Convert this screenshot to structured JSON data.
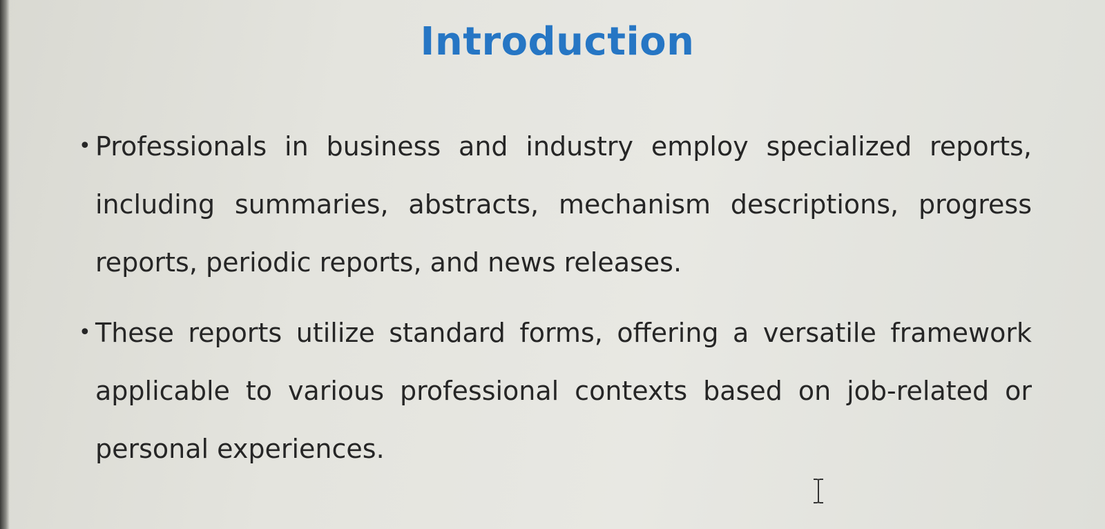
{
  "slide": {
    "title": "Introduction",
    "bullets": [
      {
        "marker": "•",
        "text": "Professionals in business and industry employ specialized reports, including summaries, abstracts, mechanism descriptions, progress reports, periodic reports, and news releases."
      },
      {
        "marker": "•",
        "text": "These reports utilize standard forms, offering a versatile framework applicable to various professional contexts based on job-related or personal experiences."
      }
    ]
  },
  "colors": {
    "title": "#2676c4",
    "body_text": "#262626",
    "background": "#e4e4de"
  },
  "icons": {
    "cursor": "text-cursor-icon"
  }
}
